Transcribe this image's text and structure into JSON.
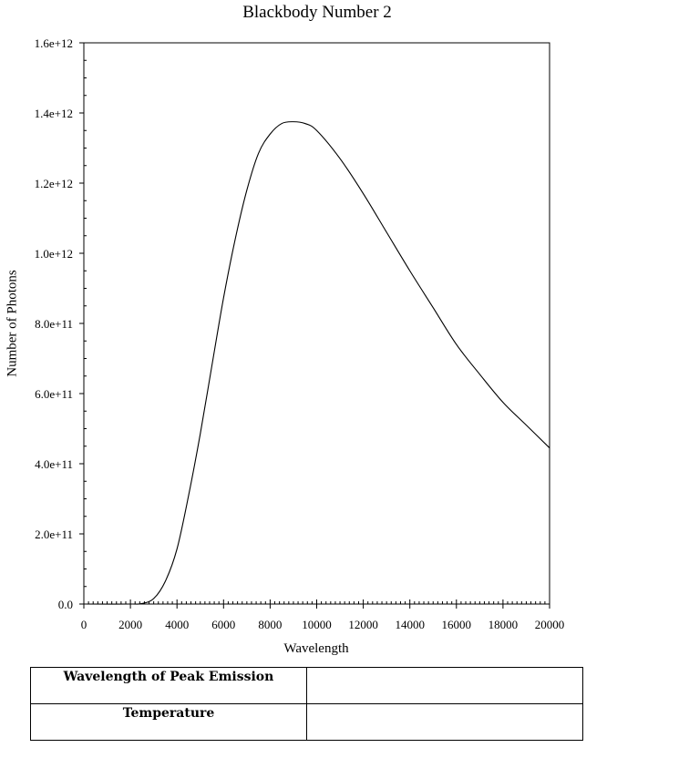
{
  "chart_data": {
    "type": "line",
    "title": "Blackbody Number 2",
    "xlabel": "Wavelength",
    "ylabel": "Number of Photons",
    "xlim": [
      0,
      20000
    ],
    "ylim": [
      0,
      1600000000000.0
    ],
    "x_ticks": [
      0,
      2000,
      4000,
      6000,
      8000,
      10000,
      12000,
      14000,
      16000,
      18000,
      20000
    ],
    "x_tick_labels": [
      "0",
      "2000",
      "4000",
      "6000",
      "8000",
      "10000",
      "12000",
      "14000",
      "16000",
      "18000",
      "20000"
    ],
    "y_ticks": [
      0,
      200000000000.0,
      400000000000.0,
      600000000000.0,
      800000000000.0,
      1000000000000.0,
      1200000000000.0,
      1400000000000.0,
      1600000000000.0
    ],
    "y_tick_labels": [
      "0.0",
      "2.0e+11",
      "4.0e+11",
      "6.0e+11",
      "8.0e+11",
      "1.0e+12",
      "1.2e+12",
      "1.4e+12",
      "1.6e+12"
    ],
    "grid": false,
    "legend": null,
    "series": [
      {
        "name": "Blackbody Number 2",
        "x": [
          0,
          2000,
          2500,
          3000,
          3500,
          4000,
          4500,
          5000,
          5500,
          6000,
          6500,
          7000,
          7500,
          8000,
          8500,
          9000,
          9500,
          10000,
          11000,
          12000,
          13000,
          14000,
          15000,
          16000,
          17000,
          18000,
          19000,
          20000
        ],
        "y": [
          0,
          0,
          1500000000.0,
          15500000000.0,
          65000000000.0,
          157000000000.0,
          310000000000.0,
          485000000000.0,
          680000000000.0,
          873000000000.0,
          1040000000000.0,
          1180000000000.0,
          1285000000000.0,
          1340000000000.0,
          1370000000000.0,
          1375000000000.0,
          1370000000000.0,
          1350000000000.0,
          1270000000000.0,
          1170000000000.0,
          1060000000000.0,
          950000000000.0,
          845000000000.0,
          740000000000.0,
          655000000000.0,
          575000000000.0,
          510000000000.0,
          445000000000.0
        ]
      }
    ]
  },
  "table": {
    "rows": [
      {
        "label": "Wavelength of Peak Emission",
        "value": ""
      },
      {
        "label": "Temperature",
        "value": ""
      }
    ]
  }
}
